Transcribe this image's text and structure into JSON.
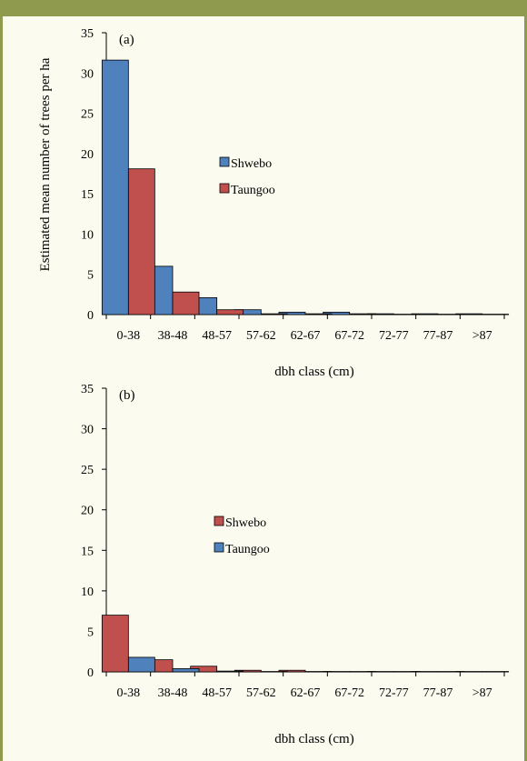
{
  "colors": {
    "frame": "#8f9a4e",
    "background": "#fbfbf0",
    "blue": "#4f81bd",
    "red": "#c0504d",
    "bar_stroke": "#000000"
  },
  "chart_data": [
    {
      "type": "bar",
      "panel_label": "(a)",
      "categories": [
        "0-38",
        "38-48",
        "48-57",
        "57-62",
        "62-67",
        "67-72",
        "72-77",
        "77-87",
        ">87"
      ],
      "series": [
        {
          "name": "Shwebo",
          "color": "#4f81bd",
          "values": [
            31.6,
            6.0,
            2.1,
            0.6,
            0.3,
            0.3,
            0.1,
            0.1,
            0.1
          ]
        },
        {
          "name": "Taungoo",
          "color": "#c0504d",
          "values": [
            18.1,
            2.8,
            0.6,
            0.1,
            0.1,
            0.1,
            0.05,
            0.05,
            0.05
          ]
        }
      ],
      "xlabel": "dbh class (cm)",
      "ylabel": "Estimated mean number of trees per ha",
      "ylim": [
        0,
        35
      ],
      "yticks": [
        0,
        5,
        10,
        15,
        20,
        25,
        30,
        35
      ],
      "grid": false,
      "legend_position": "center"
    },
    {
      "type": "bar",
      "panel_label": "(b)",
      "categories": [
        "0-38",
        "38-48",
        "48-57",
        "57-62",
        "62-67",
        "67-72",
        "72-77",
        "77-87",
        ">87"
      ],
      "series": [
        {
          "name": "Shwebo",
          "color": "#c0504d",
          "values": [
            7.0,
            1.5,
            0.7,
            0.2,
            0.2,
            0.05,
            0.05,
            0.05,
            0.05
          ]
        },
        {
          "name": "Taungoo",
          "color": "#4f81bd",
          "values": [
            1.8,
            0.4,
            0.1,
            0.05,
            0.05,
            0.05,
            0.05,
            0.05,
            0.05
          ]
        }
      ],
      "xlabel": "dbh class (cm)",
      "ylim": [
        0,
        35
      ],
      "yticks": [
        0,
        5,
        10,
        15,
        20,
        25,
        30,
        35
      ],
      "grid": false,
      "legend_position": "center"
    }
  ]
}
